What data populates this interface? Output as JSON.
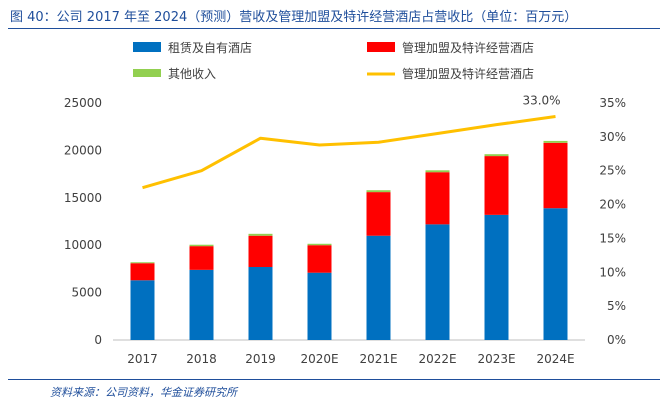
{
  "header": {
    "title": "图 40：公司 2017 年至 2024（预测）营收及管理加盟及特许经营酒店占营收比（单位：百万元）"
  },
  "footer": {
    "source": "资料来源：公司资料，华金证券研究所"
  },
  "colors": {
    "leased": "#0070c0",
    "managed": "#ff0000",
    "other": "#92d050",
    "ratio_line": "#ffc000",
    "axis_text": "#404040",
    "title": "#1f4e9b"
  },
  "chart_data": {
    "type": "bar",
    "stacked": true,
    "categories": [
      "2017",
      "2018",
      "2019",
      "2020E",
      "2021E",
      "2022E",
      "2023E",
      "2024E"
    ],
    "series": [
      {
        "name": "租赁及自有酒店",
        "values": [
          6300,
          7400,
          7700,
          7100,
          11000,
          12200,
          13200,
          13900
        ]
      },
      {
        "name": "管理加盟及特许经营酒店",
        "values": [
          1800,
          2500,
          3300,
          2900,
          4600,
          5500,
          6200,
          6900
        ]
      },
      {
        "name": "其他收入",
        "values": [
          100,
          150,
          200,
          150,
          200,
          200,
          200,
          200
        ]
      }
    ],
    "line_series": {
      "name": "管理加盟及特许经营酒店",
      "axis": "right",
      "values": [
        22.5,
        25.0,
        29.8,
        28.8,
        29.2,
        30.5,
        31.8,
        33.0
      ]
    },
    "annotations": [
      {
        "category": "2024E",
        "text": "33.0%"
      }
    ],
    "left_axis": {
      "min": 0,
      "max": 25000,
      "ticks": [
        "0",
        "5000",
        "10000",
        "15000",
        "20000",
        "25000"
      ]
    },
    "right_axis": {
      "min": 0,
      "max": 35,
      "ticks": [
        "0%",
        "5%",
        "10%",
        "15%",
        "20%",
        "25%",
        "30%",
        "35%"
      ]
    },
    "grid": false,
    "legend_position": "top"
  }
}
